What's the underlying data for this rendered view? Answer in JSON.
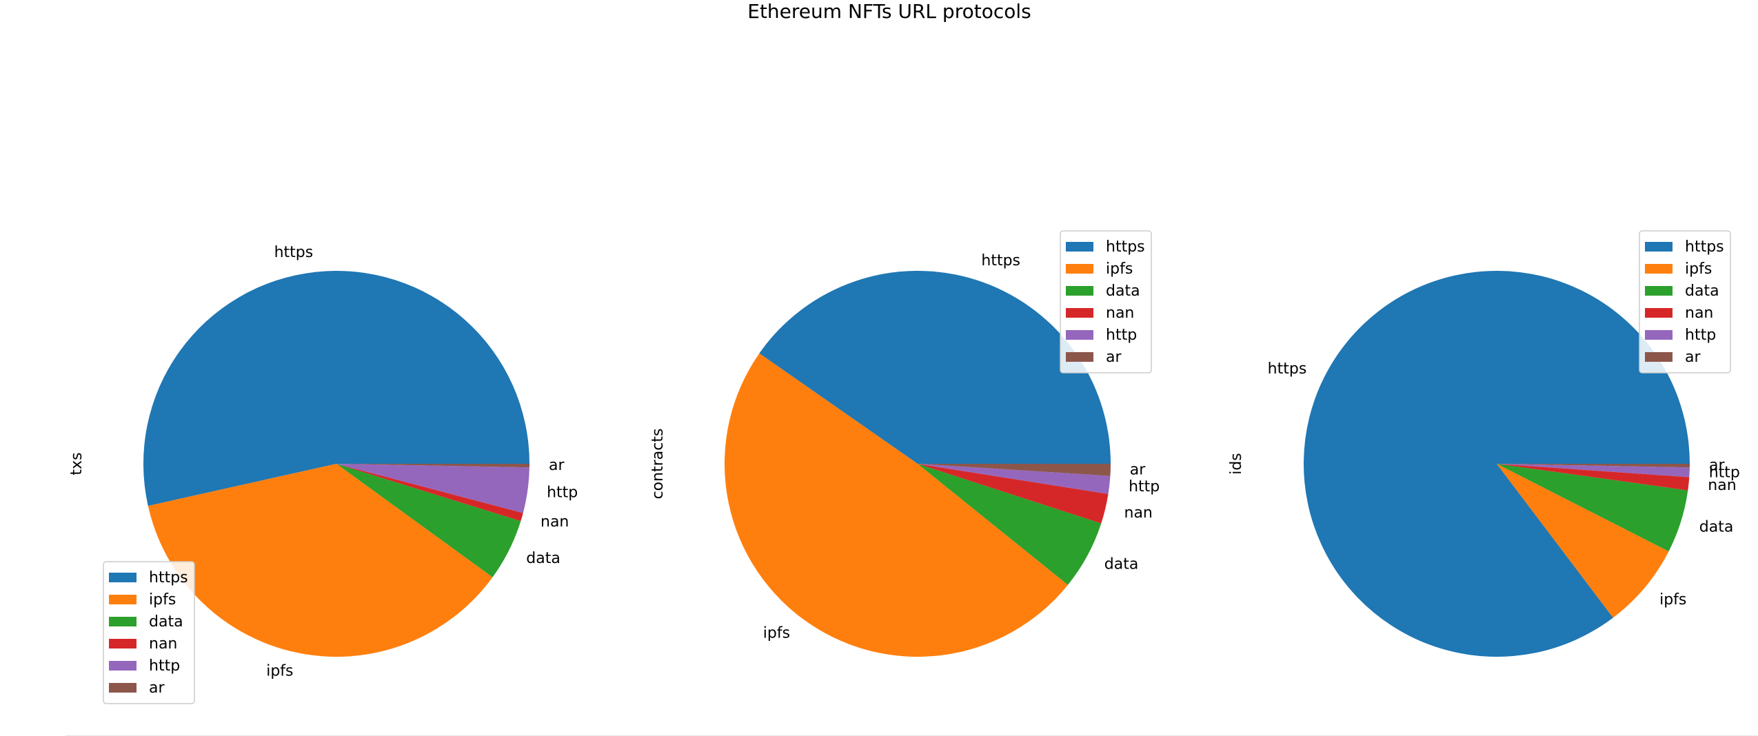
{
  "figure": {
    "title": "Ethereum NFTs URL protocols"
  },
  "colors": {
    "https": "#1f77b4",
    "ipfs": "#ff7f0e",
    "data": "#2ca02c",
    "nan": "#d62728",
    "http": "#9467bd",
    "ar": "#8c564b",
    "legend_border": "#cccccc",
    "text": "#000000"
  },
  "chart_data": [
    {
      "type": "pie",
      "ylabel": "txs",
      "legend_loc": "lower-left",
      "labels": [
        "https",
        "ipfs",
        "data",
        "nan",
        "http",
        "ar"
      ],
      "values": [
        53.5,
        36.5,
        5.2,
        0.7,
        3.8,
        0.3
      ]
    },
    {
      "type": "pie",
      "ylabel": "contracts",
      "legend_loc": "upper-right",
      "labels": [
        "https",
        "ipfs",
        "data",
        "nan",
        "http",
        "ar"
      ],
      "values": [
        40.3,
        48.9,
        5.8,
        2.5,
        1.5,
        1.0
      ]
    },
    {
      "type": "pie",
      "ylabel": "ids",
      "legend_loc": "upper-right",
      "labels": [
        "https",
        "ipfs",
        "data",
        "nan",
        "http",
        "ar"
      ],
      "values": [
        85.3,
        7.2,
        5.3,
        1.1,
        0.8,
        0.3
      ]
    }
  ]
}
